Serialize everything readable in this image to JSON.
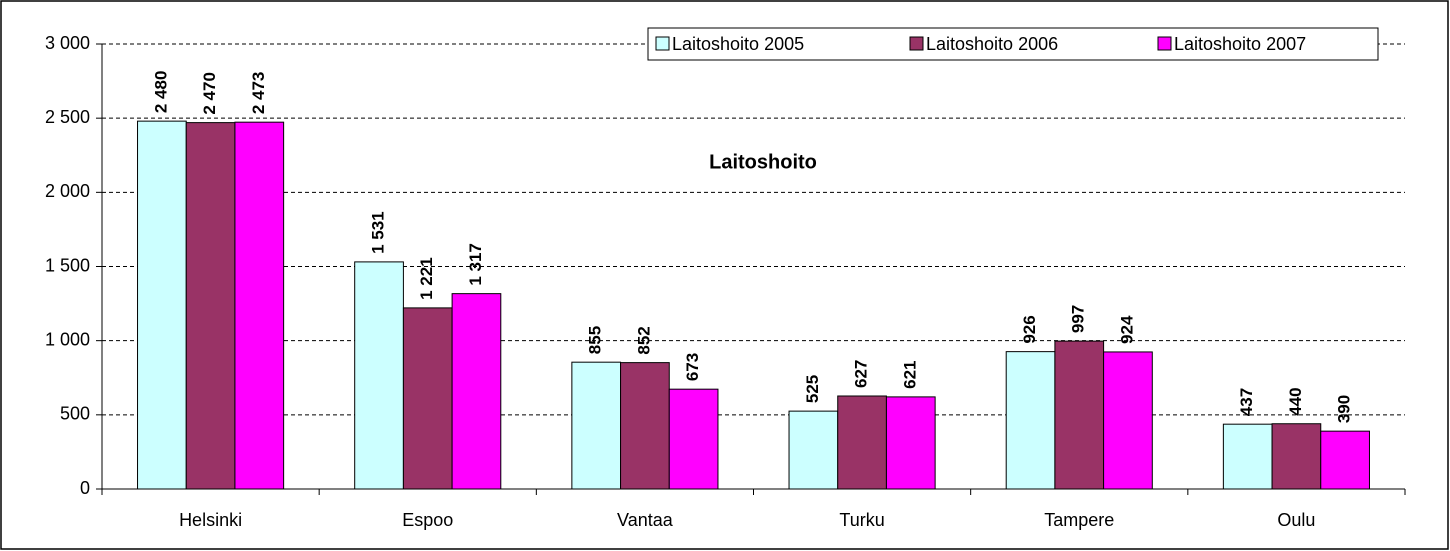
{
  "chart_data": {
    "type": "bar",
    "title": "Laitoshoito",
    "categories": [
      "Helsinki",
      "Espoo",
      "Vantaa",
      "Turku",
      "Tampere",
      "Oulu"
    ],
    "series": [
      {
        "name": "Laitoshoito 2005",
        "color": "#CCFFFF",
        "values": [
          2480,
          1531,
          855,
          525,
          926,
          437
        ],
        "value_labels": [
          "2 480",
          "1 531",
          "855",
          "525",
          "926",
          "437"
        ]
      },
      {
        "name": "Laitoshoito 2006",
        "color": "#993366",
        "values": [
          2470,
          1221,
          852,
          627,
          997,
          440
        ],
        "value_labels": [
          "2 470",
          "1 221",
          "852",
          "627",
          "997",
          "440"
        ]
      },
      {
        "name": "Laitoshoito 2007",
        "color": "#FF00FF",
        "values": [
          2473,
          1317,
          673,
          621,
          924,
          390
        ],
        "value_labels": [
          "2 473",
          "1 317",
          "673",
          "621",
          "924",
          "390"
        ]
      }
    ],
    "ylim": [
      0,
      3000
    ],
    "yticks": [
      {
        "value": 0,
        "label": "0"
      },
      {
        "value": 500,
        "label": "500"
      },
      {
        "value": 1000,
        "label": "1 000"
      },
      {
        "value": 1500,
        "label": "1 500"
      },
      {
        "value": 2000,
        "label": "2 000"
      },
      {
        "value": 2500,
        "label": "2 500"
      },
      {
        "value": 3000,
        "label": "3 000"
      }
    ],
    "grid": true,
    "legend": "top-right"
  }
}
